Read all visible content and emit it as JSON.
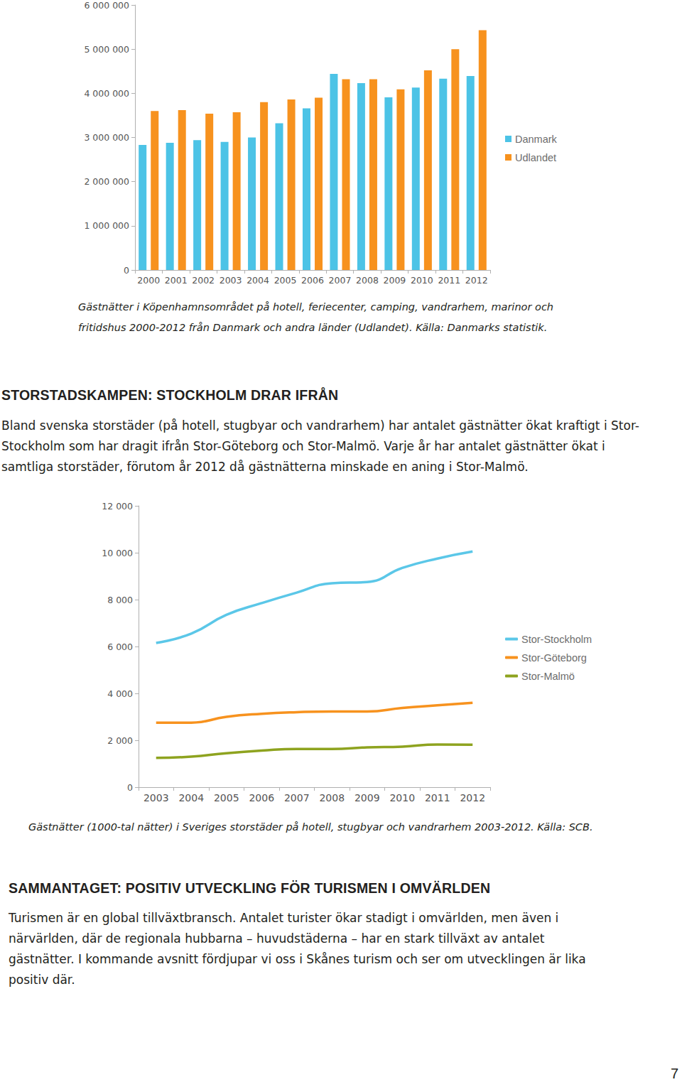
{
  "chart_data": [
    {
      "type": "bar",
      "categories": [
        "2000",
        "2001",
        "2002",
        "2003",
        "2004",
        "2005",
        "2006",
        "2007",
        "2008",
        "2009",
        "2010",
        "2011",
        "2012"
      ],
      "series": [
        {
          "name": "Danmark",
          "color": "#4cc3e6",
          "values": [
            2830000,
            2880000,
            2940000,
            2900000,
            3000000,
            3320000,
            3660000,
            4440000,
            4230000,
            3910000,
            4130000,
            4330000,
            4390000
          ]
        },
        {
          "name": "Udlandet",
          "color": "#f7921e",
          "values": [
            3600000,
            3620000,
            3540000,
            3570000,
            3800000,
            3860000,
            3900000,
            4320000,
            4320000,
            4090000,
            4520000,
            5000000,
            5430000
          ]
        }
      ],
      "ylim": [
        0,
        6000000
      ],
      "yticks": [
        0,
        {
          "value": 1000000,
          "label": "1 000 000"
        },
        {
          "value": 2000000,
          "label": "2 000 000"
        },
        {
          "value": 3000000,
          "label": "3 000 000"
        },
        {
          "value": 4000000,
          "label": "4 000 000"
        },
        {
          "value": 5000000,
          "label": "5 000 000"
        },
        {
          "value": 6000000,
          "label": "6 000 000"
        }
      ],
      "grid": false,
      "legend": "right"
    },
    {
      "type": "line",
      "categories": [
        "2003",
        "2004",
        "2005",
        "2006",
        "2007",
        "2008",
        "2009",
        "2010",
        "2011",
        "2012"
      ],
      "series": [
        {
          "name": "Stor-Stockholm",
          "color": "#5bc7e8",
          "values": [
            6150,
            6550,
            7350,
            7850,
            8300,
            8700,
            8750,
            9350,
            9750,
            10050
          ]
        },
        {
          "name": "Stor-Göteborg",
          "color": "#f7921e",
          "values": [
            2750,
            2750,
            3000,
            3130,
            3200,
            3230,
            3230,
            3380,
            3490,
            3600
          ]
        },
        {
          "name": "Stor-Malmö",
          "color": "#8ea31f",
          "values": [
            1250,
            1300,
            1450,
            1560,
            1630,
            1630,
            1700,
            1730,
            1820,
            1810
          ]
        }
      ],
      "ylim": [
        0,
        12000
      ],
      "yticks": [
        0,
        {
          "value": 2000,
          "label": "2 000"
        },
        {
          "value": 4000,
          "label": "4 000"
        },
        {
          "value": 6000,
          "label": "6 000"
        },
        {
          "value": 8000,
          "label": "8 000"
        },
        {
          "value": 10000,
          "label": "10 000"
        },
        {
          "value": 12000,
          "label": "12 000"
        }
      ],
      "grid": false,
      "legend": "right"
    }
  ],
  "document": {
    "caption_1": "Gästnätter i Köpenhamnsområdet på hotell, feriecenter, camping, vandrarhem, marinor och fritidshus 2000-2012 från Danmark och andra länder (Udlandet). Källa: Danmarks statistik.",
    "section_1": {
      "heading": "STORSTADSKAMPEN: STOCKHOLM DRAR IFRÅN",
      "text": "Bland svenska storstäder (på hotell, stugbyar och vandrarhem) har antalet gästnätter ökat kraftigt i Stor-Stockholm som har dragit ifrån Stor-Göteborg och Stor-Malmö. Varje år har antalet gästnätter ökat i samtliga storstäder, förutom år 2012 då gästnätterna minskade en aning i Stor-Malmö."
    },
    "caption_2": "Gästnätter (1000-tal nätter) i Sveriges storstäder på hotell, stugbyar och vandrarhem 2003-2012. Källa: SCB.",
    "section_2": {
      "heading": "SAMMANTAGET: POSITIV UTVECKLING FÖR TURISMEN I OMVÄRLDEN",
      "text": "Turismen är en global tillväxtbransch. Antalet turister ökar stadigt i omvärlden, men även i närvärlden, där de regionala hubbarna – huvudstäderna – har en stark tillväxt av antalet gästnätter. I kommande avsnitt fördjupar vi oss i Skånes turism och ser om utvecklingen är lika positiv där."
    },
    "page_number": "7"
  }
}
